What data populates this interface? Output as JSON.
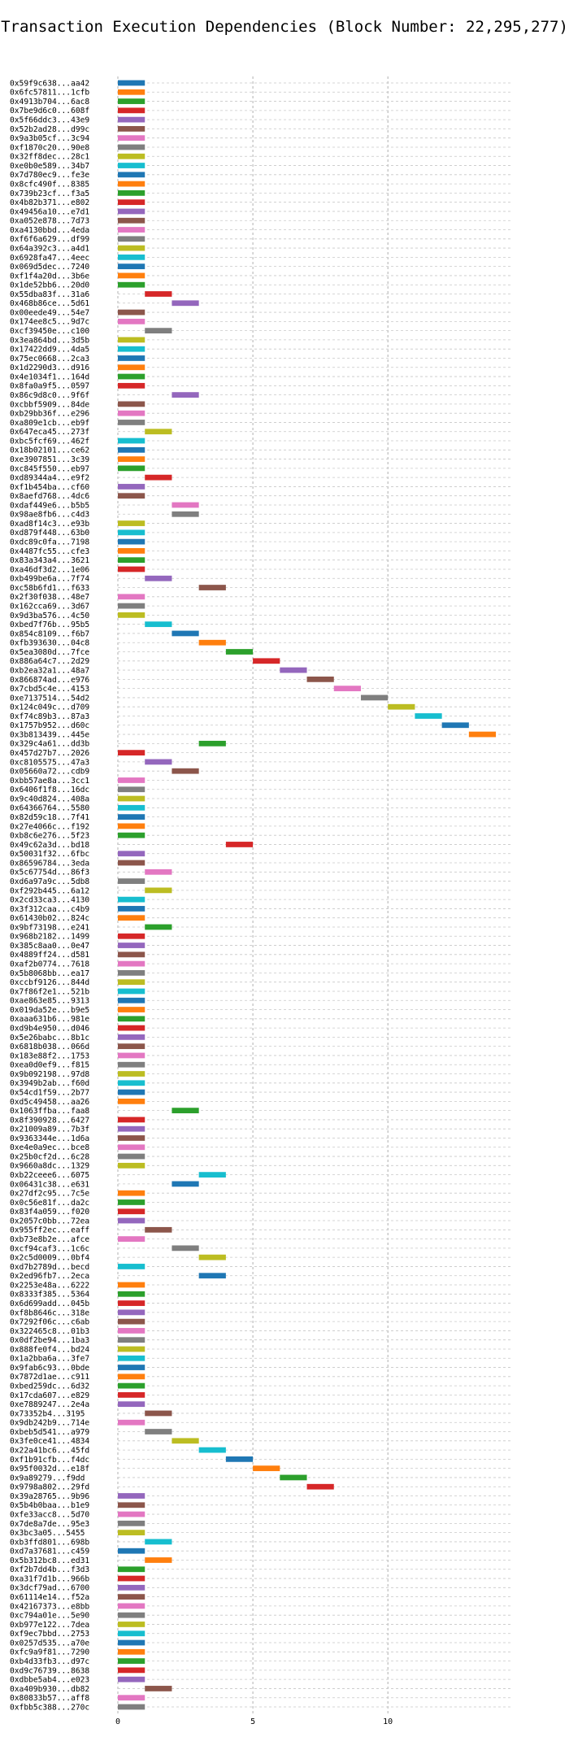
{
  "chart_data": {
    "type": "bar",
    "orientation": "horizontal",
    "title": "Transaction Execution Dependencies (Block Number: 22,295,277)",
    "xlabel": "",
    "ylabel": "",
    "xlim": [
      0,
      14.6
    ],
    "xticks": [
      0,
      5,
      10
    ],
    "grid": true,
    "palette": [
      "#1f77b4",
      "#ff7f0e",
      "#2ca02c",
      "#d62728",
      "#9467bd",
      "#8c564b",
      "#e377c2",
      "#7f7f7f",
      "#bcbd22",
      "#17becf"
    ],
    "transactions": [
      {
        "label": "0x59f9c638...aa42",
        "start": 0,
        "end": 1
      },
      {
        "label": "0x6fc57811...1cfb",
        "start": 0,
        "end": 1
      },
      {
        "label": "0x4913b704...6ac8",
        "start": 0,
        "end": 1
      },
      {
        "label": "0x7be9d6c0...608f",
        "start": 0,
        "end": 1
      },
      {
        "label": "0x5f66ddc3...43e9",
        "start": 0,
        "end": 1
      },
      {
        "label": "0x52b2ad28...d99c",
        "start": 0,
        "end": 1
      },
      {
        "label": "0x9a3b05cf...3c94",
        "start": 0,
        "end": 1
      },
      {
        "label": "0xf1870c20...90e8",
        "start": 0,
        "end": 1
      },
      {
        "label": "0x32ff8dec...28c1",
        "start": 0,
        "end": 1
      },
      {
        "label": "0xe0b0e589...34b7",
        "start": 0,
        "end": 1
      },
      {
        "label": "0x7d780ec9...fe3e",
        "start": 0,
        "end": 1
      },
      {
        "label": "0x8cfc490f...8385",
        "start": 0,
        "end": 1
      },
      {
        "label": "0x739b23cf...f3a5",
        "start": 0,
        "end": 1
      },
      {
        "label": "0x4b82b371...e802",
        "start": 0,
        "end": 1
      },
      {
        "label": "0x49456a10...e7d1",
        "start": 0,
        "end": 1
      },
      {
        "label": "0xa052e878...7d73",
        "start": 0,
        "end": 1
      },
      {
        "label": "0xa4130bbd...4eda",
        "start": 0,
        "end": 1
      },
      {
        "label": "0xf6f6a629...df99",
        "start": 0,
        "end": 1
      },
      {
        "label": "0x64a392c3...a4d1",
        "start": 0,
        "end": 1
      },
      {
        "label": "0x6928fa47...4eec",
        "start": 0,
        "end": 1
      },
      {
        "label": "0x069d5dec...7240",
        "start": 0,
        "end": 1
      },
      {
        "label": "0xf1f4a20d...3b6e",
        "start": 0,
        "end": 1
      },
      {
        "label": "0x1de52bb6...20d0",
        "start": 0,
        "end": 1
      },
      {
        "label": "0x55dba83f...31a6",
        "start": 1,
        "end": 2
      },
      {
        "label": "0x468b86ce...5d61",
        "start": 2,
        "end": 3
      },
      {
        "label": "0x00eede49...54e7",
        "start": 0,
        "end": 1
      },
      {
        "label": "0x174ee8c5...9d7c",
        "start": 0,
        "end": 1
      },
      {
        "label": "0xcf39450e...c100",
        "start": 1,
        "end": 2
      },
      {
        "label": "0x3ea864bd...3d5b",
        "start": 0,
        "end": 1
      },
      {
        "label": "0x17422dd9...4da5",
        "start": 0,
        "end": 1
      },
      {
        "label": "0x75ec0668...2ca3",
        "start": 0,
        "end": 1
      },
      {
        "label": "0x1d2290d3...d916",
        "start": 0,
        "end": 1
      },
      {
        "label": "0x4e1034f1...164d",
        "start": 0,
        "end": 1
      },
      {
        "label": "0x8fa0a9f5...0597",
        "start": 0,
        "end": 1
      },
      {
        "label": "0x86c9d8c0...9f6f",
        "start": 2,
        "end": 3
      },
      {
        "label": "0xcbbf5909...84de",
        "start": 0,
        "end": 1
      },
      {
        "label": "0xb29bb36f...e296",
        "start": 0,
        "end": 1
      },
      {
        "label": "0xa809e1cb...eb9f",
        "start": 0,
        "end": 1
      },
      {
        "label": "0x647eca45...273f",
        "start": 1,
        "end": 2
      },
      {
        "label": "0xbc5fcf69...462f",
        "start": 0,
        "end": 1
      },
      {
        "label": "0x18b02101...ce62",
        "start": 0,
        "end": 1
      },
      {
        "label": "0xe3907851...3c39",
        "start": 0,
        "end": 1
      },
      {
        "label": "0xc845f550...eb97",
        "start": 0,
        "end": 1
      },
      {
        "label": "0xd89344a4...e9f2",
        "start": 1,
        "end": 2
      },
      {
        "label": "0xf1b454ba...cf60",
        "start": 0,
        "end": 1
      },
      {
        "label": "0x8aefd768...4dc6",
        "start": 0,
        "end": 1
      },
      {
        "label": "0xdaf449e6...b5b5",
        "start": 2,
        "end": 3
      },
      {
        "label": "0x98ae8fb6...c4d3",
        "start": 2,
        "end": 3
      },
      {
        "label": "0xad8f14c3...e93b",
        "start": 0,
        "end": 1
      },
      {
        "label": "0xd879f448...63b0",
        "start": 0,
        "end": 1
      },
      {
        "label": "0xdc89c0fa...7198",
        "start": 0,
        "end": 1
      },
      {
        "label": "0x4487fc55...cfe3",
        "start": 0,
        "end": 1
      },
      {
        "label": "0x83a343a4...3621",
        "start": 0,
        "end": 1
      },
      {
        "label": "0xa46df3d2...1e06",
        "start": 0,
        "end": 1
      },
      {
        "label": "0xb499be6a...7f74",
        "start": 1,
        "end": 2
      },
      {
        "label": "0xc58b6fd1...f633",
        "start": 3,
        "end": 4
      },
      {
        "label": "0x2f30f038...48e7",
        "start": 0,
        "end": 1
      },
      {
        "label": "0x162cca69...3d67",
        "start": 0,
        "end": 1
      },
      {
        "label": "0x9d3ba576...4c50",
        "start": 0,
        "end": 1
      },
      {
        "label": "0xbed7f76b...95b5",
        "start": 1,
        "end": 2
      },
      {
        "label": "0x854c8109...f6b7",
        "start": 2,
        "end": 3
      },
      {
        "label": "0xfb393630...04c8",
        "start": 3,
        "end": 4
      },
      {
        "label": "0x5ea3080d...7fce",
        "start": 4,
        "end": 5
      },
      {
        "label": "0x886a64c7...2d29",
        "start": 5,
        "end": 6
      },
      {
        "label": "0xb2ea32a1...48a7",
        "start": 6,
        "end": 7
      },
      {
        "label": "0x866874ad...e976",
        "start": 7,
        "end": 8
      },
      {
        "label": "0x7cbd5c4e...4153",
        "start": 8,
        "end": 9
      },
      {
        "label": "0xe7137514...54d2",
        "start": 9,
        "end": 10
      },
      {
        "label": "0x124c049c...d709",
        "start": 10,
        "end": 11
      },
      {
        "label": "0xf74c89b3...87a3",
        "start": 11,
        "end": 12
      },
      {
        "label": "0x1757b952...d60c",
        "start": 12,
        "end": 13
      },
      {
        "label": "0x3b813439...445e",
        "start": 13,
        "end": 14
      },
      {
        "label": "0x329c4a61...dd3b",
        "start": 3,
        "end": 4
      },
      {
        "label": "0x457d27b7...2026",
        "start": 0,
        "end": 1
      },
      {
        "label": "0xc8105575...47a3",
        "start": 1,
        "end": 2
      },
      {
        "label": "0x05660a72...cdb9",
        "start": 2,
        "end": 3
      },
      {
        "label": "0xbb57ae8a...3cc1",
        "start": 0,
        "end": 1
      },
      {
        "label": "0x6406f1f8...16dc",
        "start": 0,
        "end": 1
      },
      {
        "label": "0x9c40d824...408a",
        "start": 0,
        "end": 1
      },
      {
        "label": "0x64366764...5580",
        "start": 0,
        "end": 1
      },
      {
        "label": "0x82d59c18...7f41",
        "start": 0,
        "end": 1
      },
      {
        "label": "0x27e4066c...f192",
        "start": 0,
        "end": 1
      },
      {
        "label": "0xb8c6e276...5f23",
        "start": 0,
        "end": 1
      },
      {
        "label": "0x49c62a3d...bd18",
        "start": 4,
        "end": 5
      },
      {
        "label": "0x50031f32...6fbc",
        "start": 0,
        "end": 1
      },
      {
        "label": "0x86596784...3eda",
        "start": 0,
        "end": 1
      },
      {
        "label": "0x5c67754d...86f3",
        "start": 1,
        "end": 2
      },
      {
        "label": "0xd6a97a9c...5db8",
        "start": 0,
        "end": 1
      },
      {
        "label": "0xf292b445...6a12",
        "start": 1,
        "end": 2
      },
      {
        "label": "0x2cd33ca3...4130",
        "start": 0,
        "end": 1
      },
      {
        "label": "0x3f312caa...c4b9",
        "start": 0,
        "end": 1
      },
      {
        "label": "0x61430b02...824c",
        "start": 0,
        "end": 1
      },
      {
        "label": "0x9bf73198...e241",
        "start": 1,
        "end": 2
      },
      {
        "label": "0x968b2182...1499",
        "start": 0,
        "end": 1
      },
      {
        "label": "0x385c8aa0...0e47",
        "start": 0,
        "end": 1
      },
      {
        "label": "0x4889ff24...d581",
        "start": 0,
        "end": 1
      },
      {
        "label": "0xaf2b0774...7618",
        "start": 0,
        "end": 1
      },
      {
        "label": "0x5b8068bb...ea17",
        "start": 0,
        "end": 1
      },
      {
        "label": "0xccbf9126...844d",
        "start": 0,
        "end": 1
      },
      {
        "label": "0x7f86f2e1...521b",
        "start": 0,
        "end": 1
      },
      {
        "label": "0xae863e85...9313",
        "start": 0,
        "end": 1
      },
      {
        "label": "0x019da52e...b9e5",
        "start": 0,
        "end": 1
      },
      {
        "label": "0xaaa631b6...981e",
        "start": 0,
        "end": 1
      },
      {
        "label": "0xd9b4e950...d046",
        "start": 0,
        "end": 1
      },
      {
        "label": "0x5e26babc...8b1c",
        "start": 0,
        "end": 1
      },
      {
        "label": "0x6818b038...066d",
        "start": 0,
        "end": 1
      },
      {
        "label": "0x183e88f2...1753",
        "start": 0,
        "end": 1
      },
      {
        "label": "0xea0d0ef9...f815",
        "start": 0,
        "end": 1
      },
      {
        "label": "0x9b092198...97d8",
        "start": 0,
        "end": 1
      },
      {
        "label": "0x3949b2ab...f60d",
        "start": 0,
        "end": 1
      },
      {
        "label": "0x54cd1f59...2b77",
        "start": 0,
        "end": 1
      },
      {
        "label": "0xd5c49458...aa26",
        "start": 0,
        "end": 1
      },
      {
        "label": "0x1063ffba...faa8",
        "start": 2,
        "end": 3
      },
      {
        "label": "0x8f390928...6427",
        "start": 0,
        "end": 1
      },
      {
        "label": "0x21009a89...7b3f",
        "start": 0,
        "end": 1
      },
      {
        "label": "0x9363344e...1d6a",
        "start": 0,
        "end": 1
      },
      {
        "label": "0xe4e0a9ec...bce8",
        "start": 0,
        "end": 1
      },
      {
        "label": "0x25b0cf2d...6c28",
        "start": 0,
        "end": 1
      },
      {
        "label": "0x9660a8dc...1329",
        "start": 0,
        "end": 1
      },
      {
        "label": "0xb22ceee6...6075",
        "start": 3,
        "end": 4
      },
      {
        "label": "0x06431c38...e631",
        "start": 2,
        "end": 3
      },
      {
        "label": "0x27df2c95...7c5e",
        "start": 0,
        "end": 1
      },
      {
        "label": "0x0c56e81f...da2c",
        "start": 0,
        "end": 1
      },
      {
        "label": "0x83f4a059...f020",
        "start": 0,
        "end": 1
      },
      {
        "label": "0x2057c0bb...72ea",
        "start": 0,
        "end": 1
      },
      {
        "label": "0x955ff2ec...eaff",
        "start": 1,
        "end": 2
      },
      {
        "label": "0xb73e8b2e...afce",
        "start": 0,
        "end": 1
      },
      {
        "label": "0xcf94caf3...1c6c",
        "start": 2,
        "end": 3
      },
      {
        "label": "0x2c5d0009...0bf4",
        "start": 3,
        "end": 4
      },
      {
        "label": "0xd7b2789d...becd",
        "start": 0,
        "end": 1
      },
      {
        "label": "0x2ed96fb7...2eca",
        "start": 3,
        "end": 4
      },
      {
        "label": "0x2253e48a...6222",
        "start": 0,
        "end": 1
      },
      {
        "label": "0x8333f385...5364",
        "start": 0,
        "end": 1
      },
      {
        "label": "0x6d699add...045b",
        "start": 0,
        "end": 1
      },
      {
        "label": "0xf8b8646c...318e",
        "start": 0,
        "end": 1
      },
      {
        "label": "0x7292f06c...c6ab",
        "start": 0,
        "end": 1
      },
      {
        "label": "0x322465c8...01b3",
        "start": 0,
        "end": 1
      },
      {
        "label": "0x0df2be94...1ba3",
        "start": 0,
        "end": 1
      },
      {
        "label": "0x888fe0f4...bd24",
        "start": 0,
        "end": 1
      },
      {
        "label": "0x1a2bba6a...3fe7",
        "start": 0,
        "end": 1
      },
      {
        "label": "0x9fab6c93...0bde",
        "start": 0,
        "end": 1
      },
      {
        "label": "0x7872d1ae...c911",
        "start": 0,
        "end": 1
      },
      {
        "label": "0xbed259dc...6d32",
        "start": 0,
        "end": 1
      },
      {
        "label": "0x17cda607...e829",
        "start": 0,
        "end": 1
      },
      {
        "label": "0xe7889247...2e4a",
        "start": 0,
        "end": 1
      },
      {
        "label": "0x73352b4...3195",
        "start": 1,
        "end": 2
      },
      {
        "label": "0x9db242b9...714e",
        "start": 0,
        "end": 1
      },
      {
        "label": "0xbeb5d541...a979",
        "start": 1,
        "end": 2
      },
      {
        "label": "0x3fe0ce41...4834",
        "start": 2,
        "end": 3
      },
      {
        "label": "0x22a41bc6...45fd",
        "start": 3,
        "end": 4
      },
      {
        "label": "0xf1b91cfb...f4dc",
        "start": 4,
        "end": 5
      },
      {
        "label": "0x95f0032d...e18f",
        "start": 5,
        "end": 6
      },
      {
        "label": "0x9a89279...f9dd",
        "start": 6,
        "end": 7
      },
      {
        "label": "0x9798a802...29fd",
        "start": 7,
        "end": 8
      },
      {
        "label": "0x39a28765...9b96",
        "start": 0,
        "end": 1
      },
      {
        "label": "0x5b4b0baa...b1e9",
        "start": 0,
        "end": 1
      },
      {
        "label": "0xfe33acc8...5d70",
        "start": 0,
        "end": 1
      },
      {
        "label": "0x7de8a7de...95e3",
        "start": 0,
        "end": 1
      },
      {
        "label": "0x3bc3a05...5455",
        "start": 0,
        "end": 1
      },
      {
        "label": "0xb3ffd801...698b",
        "start": 1,
        "end": 2
      },
      {
        "label": "0xd7a37681...c459",
        "start": 0,
        "end": 1
      },
      {
        "label": "0x5b312bc8...ed31",
        "start": 1,
        "end": 2
      },
      {
        "label": "0xf2b7dd4b...f3d3",
        "start": 0,
        "end": 1
      },
      {
        "label": "0xa31f7d1b...966b",
        "start": 0,
        "end": 1
      },
      {
        "label": "0x3dcf79ad...6700",
        "start": 0,
        "end": 1
      },
      {
        "label": "0x61114e14...f52a",
        "start": 0,
        "end": 1
      },
      {
        "label": "0x42167373...e8bb",
        "start": 0,
        "end": 1
      },
      {
        "label": "0xc794a01e...5e90",
        "start": 0,
        "end": 1
      },
      {
        "label": "0xb977e122...7dea",
        "start": 0,
        "end": 1
      },
      {
        "label": "0xf9ec7bbd...2753",
        "start": 0,
        "end": 1
      },
      {
        "label": "0x0257d535...a70e",
        "start": 0,
        "end": 1
      },
      {
        "label": "0xfc9a9f81...7290",
        "start": 0,
        "end": 1
      },
      {
        "label": "0xb4d33fb3...d97c",
        "start": 0,
        "end": 1
      },
      {
        "label": "0xd9c76739...8638",
        "start": 0,
        "end": 1
      },
      {
        "label": "0xdbbe5ab4...e023",
        "start": 0,
        "end": 1
      },
      {
        "label": "0xa409b930...db82",
        "start": 1,
        "end": 2
      },
      {
        "label": "0x80833b57...aff8",
        "start": 0,
        "end": 1
      },
      {
        "label": "0xfbb5c388...270c",
        "start": 0,
        "end": 1
      }
    ]
  }
}
